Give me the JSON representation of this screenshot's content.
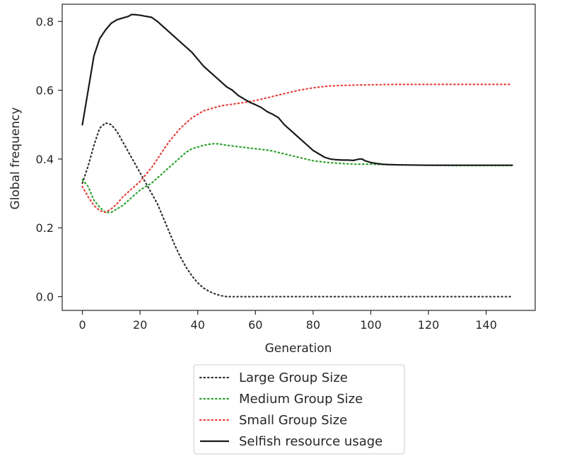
{
  "chart_data": {
    "type": "line",
    "title": "",
    "xlabel": "Generation",
    "ylabel": "Global frequency",
    "xlim": [
      -7,
      157
    ],
    "ylim": [
      -0.04,
      0.85
    ],
    "xticks": [
      0,
      20,
      40,
      60,
      80,
      100,
      120,
      140
    ],
    "yticks": [
      0.0,
      0.2,
      0.4,
      0.6,
      0.8
    ],
    "ytick_labels": [
      "0.0",
      "0.2",
      "0.4",
      "0.6",
      "0.8"
    ],
    "grid": false,
    "legend_position": "below-center",
    "series": [
      {
        "name": "Large Group Size",
        "style": "dotted",
        "color": "#333333",
        "x": [
          0,
          2,
          4,
          6,
          8,
          10,
          12,
          14,
          16,
          18,
          20,
          22,
          24,
          26,
          28,
          30,
          32,
          34,
          36,
          38,
          40,
          42,
          44,
          46,
          48,
          50,
          60,
          80,
          100,
          120,
          149
        ],
        "y": [
          0.33,
          0.38,
          0.44,
          0.49,
          0.505,
          0.5,
          0.48,
          0.45,
          0.42,
          0.39,
          0.36,
          0.33,
          0.3,
          0.27,
          0.23,
          0.19,
          0.15,
          0.115,
          0.085,
          0.06,
          0.04,
          0.025,
          0.015,
          0.008,
          0.003,
          0.0,
          0.0,
          0.0,
          0.0,
          0.0,
          0.0
        ]
      },
      {
        "name": "Medium Group Size",
        "style": "dotted",
        "color": "#2ca02c",
        "x": [
          0,
          2,
          4,
          6,
          8,
          10,
          12,
          14,
          16,
          18,
          20,
          22,
          24,
          26,
          28,
          30,
          32,
          34,
          36,
          38,
          40,
          42,
          44,
          46,
          48,
          50,
          55,
          60,
          65,
          70,
          75,
          80,
          85,
          90,
          95,
          100,
          110,
          120,
          130,
          140,
          149
        ],
        "y": [
          0.34,
          0.32,
          0.28,
          0.26,
          0.245,
          0.245,
          0.255,
          0.265,
          0.28,
          0.295,
          0.31,
          0.32,
          0.33,
          0.345,
          0.36,
          0.375,
          0.39,
          0.405,
          0.42,
          0.43,
          0.435,
          0.44,
          0.443,
          0.445,
          0.443,
          0.44,
          0.435,
          0.43,
          0.425,
          0.415,
          0.405,
          0.395,
          0.39,
          0.387,
          0.385,
          0.385,
          0.383,
          0.382,
          0.381,
          0.381,
          0.381
        ]
      },
      {
        "name": "Small Group Size",
        "style": "dotted",
        "color": "#e8413c",
        "x": [
          0,
          2,
          4,
          6,
          8,
          10,
          12,
          14,
          16,
          18,
          20,
          22,
          24,
          26,
          28,
          30,
          32,
          34,
          36,
          38,
          40,
          42,
          44,
          46,
          48,
          50,
          55,
          60,
          65,
          70,
          75,
          80,
          85,
          90,
          95,
          100,
          110,
          120,
          130,
          140,
          149
        ],
        "y": [
          0.32,
          0.29,
          0.265,
          0.25,
          0.245,
          0.255,
          0.27,
          0.29,
          0.305,
          0.32,
          0.335,
          0.355,
          0.375,
          0.4,
          0.425,
          0.45,
          0.47,
          0.49,
          0.505,
          0.52,
          0.53,
          0.54,
          0.545,
          0.55,
          0.555,
          0.557,
          0.563,
          0.57,
          0.58,
          0.59,
          0.6,
          0.607,
          0.612,
          0.614,
          0.615,
          0.616,
          0.617,
          0.617,
          0.617,
          0.617,
          0.617
        ]
      },
      {
        "name": "Selfish resource usage",
        "style": "solid",
        "color": "#1a1a1a",
        "x": [
          0,
          2,
          4,
          6,
          8,
          10,
          12,
          14,
          16,
          17,
          18,
          20,
          22,
          24,
          26,
          28,
          30,
          32,
          34,
          36,
          38,
          40,
          42,
          44,
          46,
          48,
          50,
          52,
          54,
          56,
          58,
          60,
          62,
          64,
          66,
          68,
          70,
          72,
          74,
          76,
          78,
          80,
          82,
          84,
          86,
          88,
          90,
          92,
          94,
          96,
          97,
          98,
          100,
          102,
          104,
          106,
          110,
          120,
          130,
          140,
          149
        ],
        "y": [
          0.5,
          0.6,
          0.7,
          0.75,
          0.775,
          0.795,
          0.805,
          0.81,
          0.815,
          0.82,
          0.82,
          0.818,
          0.815,
          0.812,
          0.8,
          0.785,
          0.77,
          0.755,
          0.74,
          0.725,
          0.71,
          0.69,
          0.67,
          0.655,
          0.64,
          0.625,
          0.61,
          0.6,
          0.585,
          0.575,
          0.565,
          0.558,
          0.55,
          0.538,
          0.53,
          0.52,
          0.5,
          0.485,
          0.47,
          0.455,
          0.44,
          0.425,
          0.415,
          0.405,
          0.4,
          0.398,
          0.397,
          0.397,
          0.396,
          0.4,
          0.4,
          0.395,
          0.39,
          0.387,
          0.385,
          0.384,
          0.383,
          0.382,
          0.382,
          0.382,
          0.382
        ]
      }
    ]
  }
}
